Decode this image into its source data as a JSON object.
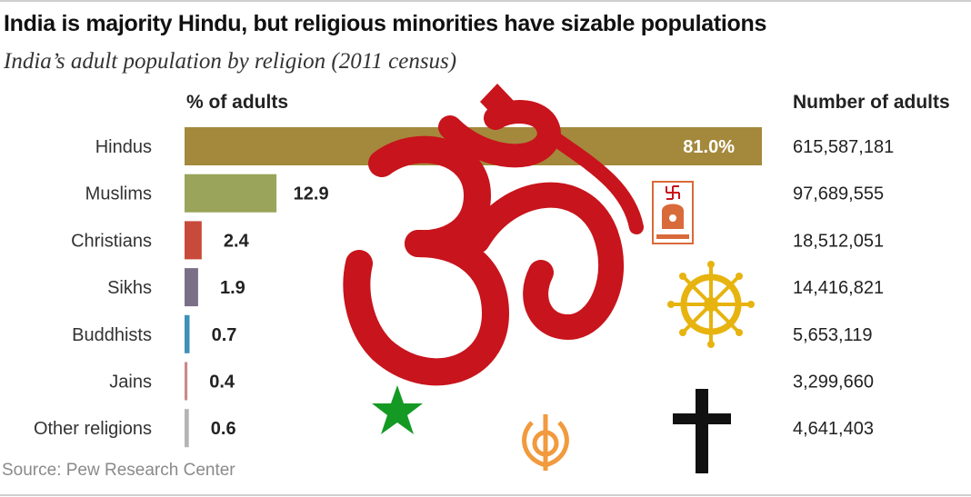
{
  "title": "India is majority Hindu, but religious minorities have sizable populations",
  "subtitle": "India’s adult population by religion (2011 census)",
  "source": "Source: Pew Research Center",
  "chart_data": {
    "type": "bar",
    "orientation": "horizontal",
    "column_headers": {
      "percent": "% of adults",
      "count": "Number of adults"
    },
    "categories": [
      "Hindus",
      "Muslims",
      "Christians",
      "Sikhs",
      "Buddhists",
      "Jains",
      "Other religions"
    ],
    "values": [
      81.0,
      12.9,
      2.4,
      1.9,
      0.7,
      0.4,
      0.6
    ],
    "value_labels": [
      "81.0%",
      "12.9",
      "2.4",
      "1.9",
      "0.7",
      "0.4",
      "0.6"
    ],
    "counts": [
      "615,587,181",
      "97,689,555",
      "18,512,051",
      "14,416,821",
      "5,653,119",
      "3,299,660",
      "4,641,403"
    ],
    "colors": [
      "#a4893c",
      "#9aa45a",
      "#c84a3b",
      "#7a6f86",
      "#3e90b8",
      "#c98a88",
      "#b5b3b6"
    ],
    "xlim": [
      0,
      81
    ],
    "grid": false,
    "decorative_symbols": [
      "om-icon",
      "jain-symbol-icon",
      "dharma-wheel-icon",
      "star-and-crescent-icon",
      "khanda-icon",
      "cross-icon"
    ]
  }
}
